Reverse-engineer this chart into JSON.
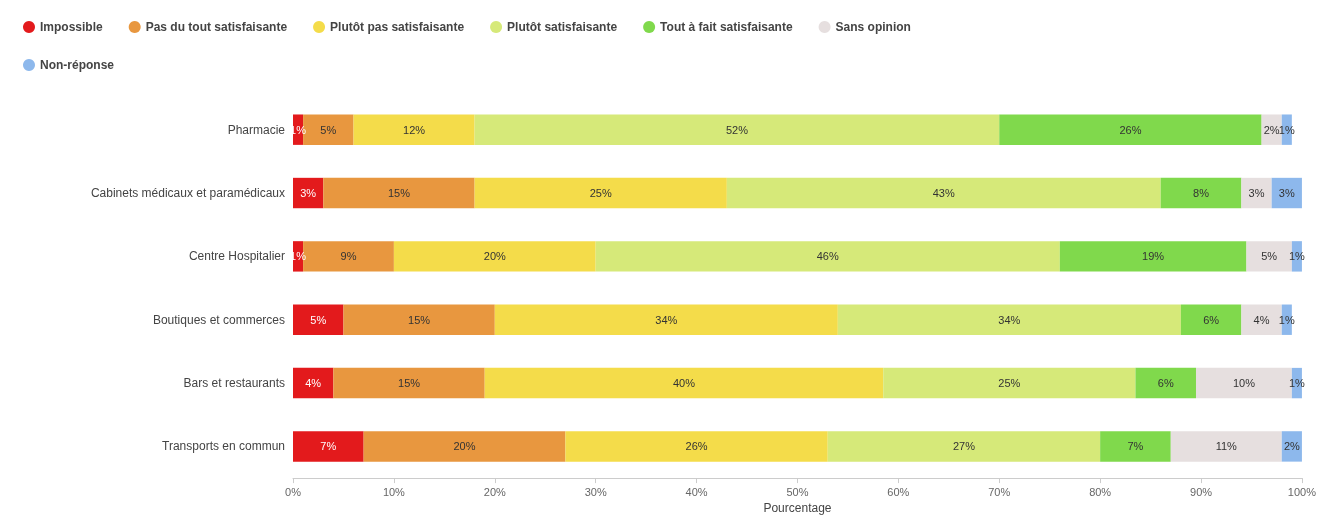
{
  "chart_data": {
    "type": "bar",
    "orientation": "horizontal",
    "stacked": true,
    "xlabel": "Pourcentage",
    "categories": [
      "Pharmacie",
      "Cabinets médicaux et paramédicaux",
      "Centre Hospitalier",
      "Boutiques et commerces",
      "Bars et restaurants",
      "Transports en commun"
    ],
    "series": [
      {
        "name": "Impossible",
        "color": "#e31a1c",
        "values": [
          1,
          3,
          1,
          5,
          4,
          7
        ],
        "value_labels": [
          "1%",
          "3%",
          "1%",
          "5%",
          "4%",
          "7%"
        ]
      },
      {
        "name": "Pas du tout satisfaisante",
        "color": "#e8973f",
        "values": [
          5,
          15,
          9,
          15,
          15,
          20
        ],
        "value_labels": [
          "5%",
          "15%",
          "9%",
          "15%",
          "15%",
          "20%"
        ]
      },
      {
        "name": "Plutôt pas satisfaisante",
        "color": "#f4dc4a",
        "values": [
          12,
          25,
          20,
          34,
          39.5,
          26
        ],
        "value_labels": [
          "12%",
          "25%",
          "20%",
          "34%",
          "40%",
          "26%"
        ]
      },
      {
        "name": "Plutôt satisfaisante",
        "color": "#d6e979",
        "values": [
          52,
          43,
          46,
          34,
          25,
          27
        ],
        "value_labels": [
          "52%",
          "43%",
          "46%",
          "34%",
          "25%",
          "27%"
        ]
      },
      {
        "name": "Tout à fait satisfaisante",
        "color": "#80d94c",
        "values": [
          26,
          8,
          18.5,
          6,
          6,
          7
        ],
        "value_labels": [
          "26%",
          "8%",
          "19%",
          "6%",
          "6%",
          "7%"
        ]
      },
      {
        "name": "Sans opinion",
        "color": "#e6dfdf",
        "values": [
          2,
          3,
          4.5,
          4,
          9.5,
          11
        ],
        "value_labels": [
          "2%",
          "3%",
          "5%",
          "4%",
          "10%",
          "11%"
        ]
      },
      {
        "name": "Non-réponse",
        "color": "#8db8ec",
        "values": [
          1,
          3,
          1,
          1,
          1,
          2
        ],
        "value_labels": [
          "1%",
          "3%",
          "1%",
          "1%",
          "1%",
          "2%"
        ]
      }
    ],
    "xlim": [
      0,
      100
    ],
    "xticks": [
      {
        "value": 0,
        "label": "0%"
      },
      {
        "value": 10,
        "label": "10%"
      },
      {
        "value": 20,
        "label": "20%"
      },
      {
        "value": 30,
        "label": "30%"
      },
      {
        "value": 40,
        "label": "40%"
      },
      {
        "value": 50,
        "label": "50%"
      },
      {
        "value": 60,
        "label": "60%"
      },
      {
        "value": 70,
        "label": "70%"
      },
      {
        "value": 80,
        "label": "80%"
      },
      {
        "value": 90,
        "label": "90%"
      },
      {
        "value": 100,
        "label": "100%"
      }
    ],
    "grid": false,
    "legend": "top left"
  }
}
